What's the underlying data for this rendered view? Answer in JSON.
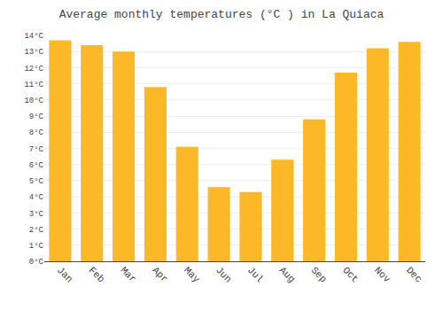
{
  "chart_data": {
    "type": "bar",
    "title": "Average monthly temperatures (°C ) in La Quiaca",
    "categories": [
      "Jan",
      "Feb",
      "Mar",
      "Apr",
      "May",
      "Jun",
      "Jul",
      "Aug",
      "Sep",
      "Oct",
      "Nov",
      "Dec"
    ],
    "values": [
      13.7,
      13.4,
      13.0,
      10.8,
      7.1,
      4.6,
      4.3,
      6.3,
      8.8,
      11.7,
      13.2,
      13.6
    ],
    "color": "#FDB827",
    "ylim": [
      0,
      14
    ],
    "yticks": [
      {
        "value": 0,
        "label": "0°C"
      },
      {
        "value": 1,
        "label": "1°C"
      },
      {
        "value": 2,
        "label": "2°C"
      },
      {
        "value": 3,
        "label": "3°C"
      },
      {
        "value": 4,
        "label": "4°C"
      },
      {
        "value": 5,
        "label": "5°C"
      },
      {
        "value": 6,
        "label": "6°C"
      },
      {
        "value": 7,
        "label": "7°C"
      },
      {
        "value": 8,
        "label": "8°C"
      },
      {
        "value": 9,
        "label": "9°C"
      },
      {
        "value": 10,
        "label": "10°C"
      },
      {
        "value": 11,
        "label": "11°C"
      },
      {
        "value": 12,
        "label": "12°C"
      },
      {
        "value": 13,
        "label": "13°C"
      },
      {
        "value": 14,
        "label": "14°C"
      }
    ],
    "grid": true
  }
}
